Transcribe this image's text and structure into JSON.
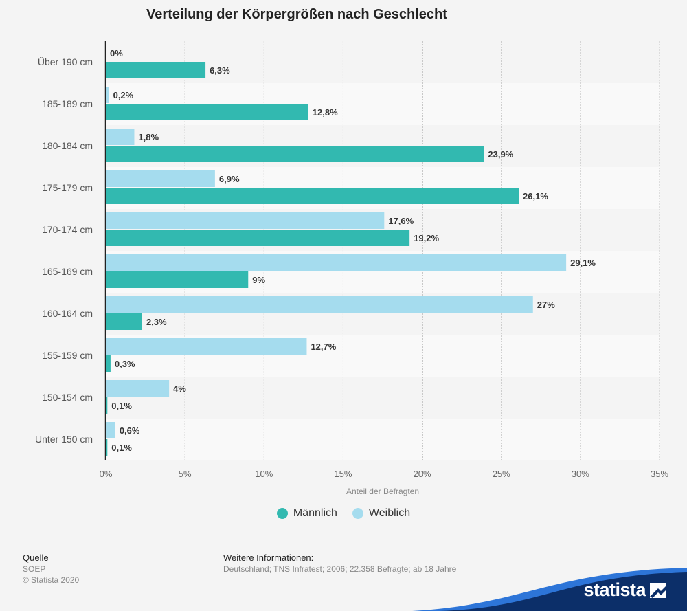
{
  "chart_data": {
    "type": "bar",
    "orientation": "horizontal",
    "title": "Verteilung der Körpergrößen nach Geschlecht",
    "xlabel": "Anteil der Befragten",
    "ylabel": "",
    "xlim": [
      0,
      35
    ],
    "x_ticks": [
      "0%",
      "5%",
      "10%",
      "15%",
      "20%",
      "25%",
      "30%",
      "35%"
    ],
    "grid": true,
    "legend_position": "bottom-center",
    "categories": [
      "Über 190 cm",
      "185-189 cm",
      "180-184 cm",
      "175-179 cm",
      "170-174 cm",
      "165-169 cm",
      "160-164 cm",
      "155-159 cm",
      "150-154 cm",
      "Unter 150 cm"
    ],
    "series": [
      {
        "name": "Männlich",
        "color": "#32b9b0",
        "values": [
          6.3,
          12.8,
          23.9,
          26.1,
          19.2,
          9,
          2.3,
          0.3,
          0.1,
          0.1
        ],
        "labels": [
          "6,3%",
          "12,8%",
          "23,9%",
          "26,1%",
          "19,2%",
          "9%",
          "2,3%",
          "0,3%",
          "0,1%",
          "0,1%"
        ]
      },
      {
        "name": "Weiblich",
        "color": "#a5dcee",
        "values": [
          0,
          0.2,
          1.8,
          6.9,
          17.6,
          29.1,
          27,
          12.7,
          4,
          0.6
        ],
        "labels": [
          "0%",
          "0,2%",
          "1,8%",
          "6,9%",
          "17,6%",
          "29,1%",
          "27%",
          "12,7%",
          "4%",
          "0,6%"
        ]
      }
    ]
  },
  "footer": {
    "source_heading": "Quelle",
    "source": "SOEP",
    "copyright": "© Statista 2020",
    "info_heading": "Weitere Informationen:",
    "info": "Deutschland; TNS Infratest; 2006; 22.358 Befragte; ab 18 Jahre"
  },
  "brand": {
    "name": "statista",
    "color": "#0c2f69",
    "accent": "#2d75d8"
  }
}
